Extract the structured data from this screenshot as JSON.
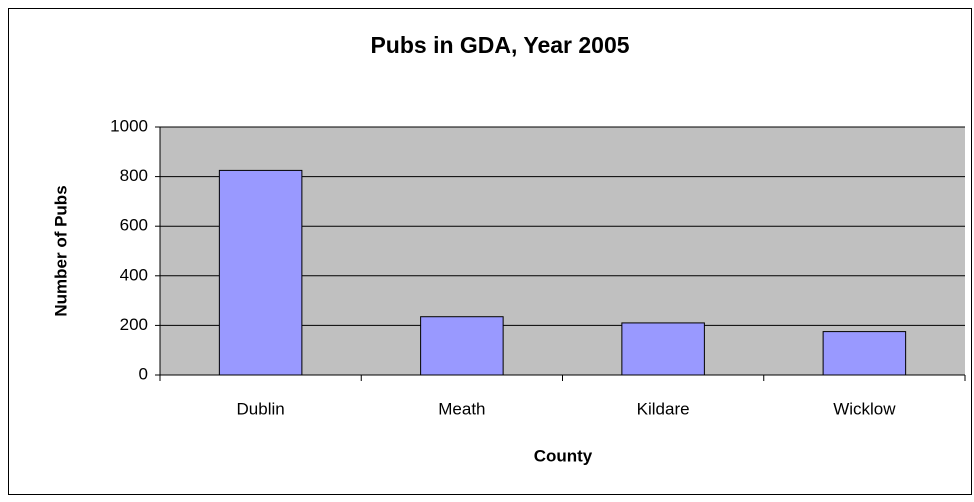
{
  "chart_data": {
    "type": "bar",
    "title": "Pubs in GDA, Year 2005",
    "x_label": "County",
    "y_label": "Number of Pubs",
    "categories": [
      "Dublin",
      "Meath",
      "Kildare",
      "Wicklow"
    ],
    "values": [
      825,
      235,
      210,
      175
    ],
    "color": "#9999ff",
    "ylim": [
      0,
      1000
    ],
    "yticks": [
      0,
      200,
      400,
      600,
      800,
      1000
    ],
    "grid": true
  }
}
